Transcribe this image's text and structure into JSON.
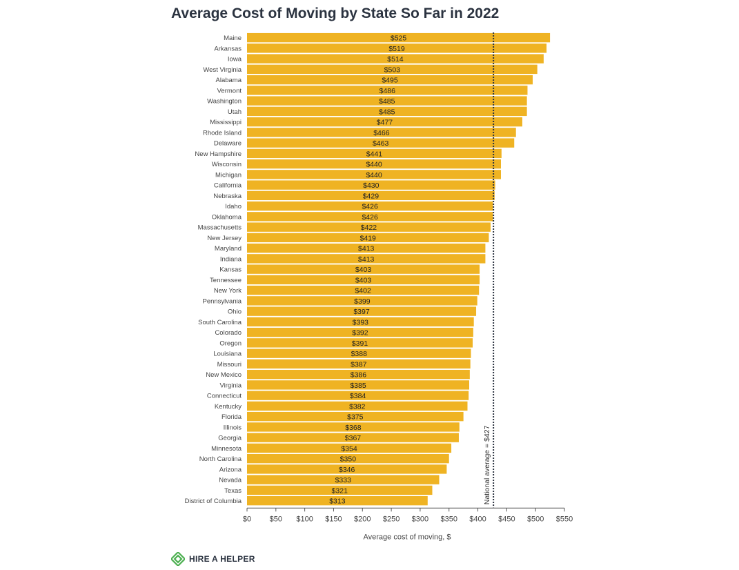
{
  "chart_data": {
    "type": "bar",
    "orientation": "horizontal",
    "title": "Average Cost of Moving by State So Far in 2022",
    "xlabel": "Average cost of moving, $",
    "ylabel": "",
    "xlim": [
      0,
      550
    ],
    "x_ticks": [
      "$0",
      "$50",
      "$100",
      "$150",
      "$200",
      "$250",
      "$300",
      "$350",
      "$400",
      "$450",
      "$500",
      "$550"
    ],
    "categories": [
      "Maine",
      "Arkansas",
      "Iowa",
      "West Virginia",
      "Alabama",
      "Vermont",
      "Washington",
      "Utah",
      "Mississippi",
      "Rhode Island",
      "Delaware",
      "New Hampshire",
      "Wisconsin",
      "Michigan",
      "California",
      "Nebraska",
      "Idaho",
      "Oklahoma",
      "Massachusetts",
      "New Jersey",
      "Maryland",
      "Indiana",
      "Kansas",
      "Tennessee",
      "New York",
      "Pennsylvania",
      "Ohio",
      "South Carolina",
      "Colorado",
      "Oregon",
      "Louisiana",
      "Missouri",
      "New Mexico",
      "Virginia",
      "Connecticut",
      "Kentucky",
      "Florida",
      "Illinois",
      "Georgia",
      "Minnesota",
      "North Carolina",
      "Arizona",
      "Nevada",
      "Texas",
      "District of Columbia"
    ],
    "values": [
      525,
      519,
      514,
      503,
      495,
      486,
      485,
      485,
      477,
      466,
      463,
      441,
      440,
      440,
      430,
      429,
      426,
      426,
      422,
      419,
      413,
      413,
      403,
      403,
      402,
      399,
      397,
      393,
      392,
      391,
      388,
      387,
      386,
      385,
      384,
      382,
      375,
      368,
      367,
      354,
      350,
      346,
      333,
      321,
      313
    ],
    "value_labels": [
      "$525",
      "$519",
      "$514",
      "$503",
      "$495",
      "$486",
      "$485",
      "$485",
      "$477",
      "$466",
      "$463",
      "$441",
      "$440",
      "$440",
      "$430",
      "$429",
      "$426",
      "$426",
      "$422",
      "$419",
      "$413",
      "$413",
      "$403",
      "$403",
      "$402",
      "$399",
      "$397",
      "$393",
      "$392",
      "$391",
      "$388",
      "$387",
      "$386",
      "$385",
      "$384",
      "$382",
      "$375",
      "$368",
      "$367",
      "$354",
      "$350",
      "$346",
      "$333",
      "$321",
      "$313"
    ],
    "reference_line": {
      "value": 427,
      "label": "National average = $427"
    },
    "bar_color": "#efb323",
    "grid": false,
    "legend": "none"
  },
  "brand": {
    "name": "HIRE A HELPER",
    "icon": "hire-a-helper-logo-icon",
    "color": "#4caf50"
  }
}
